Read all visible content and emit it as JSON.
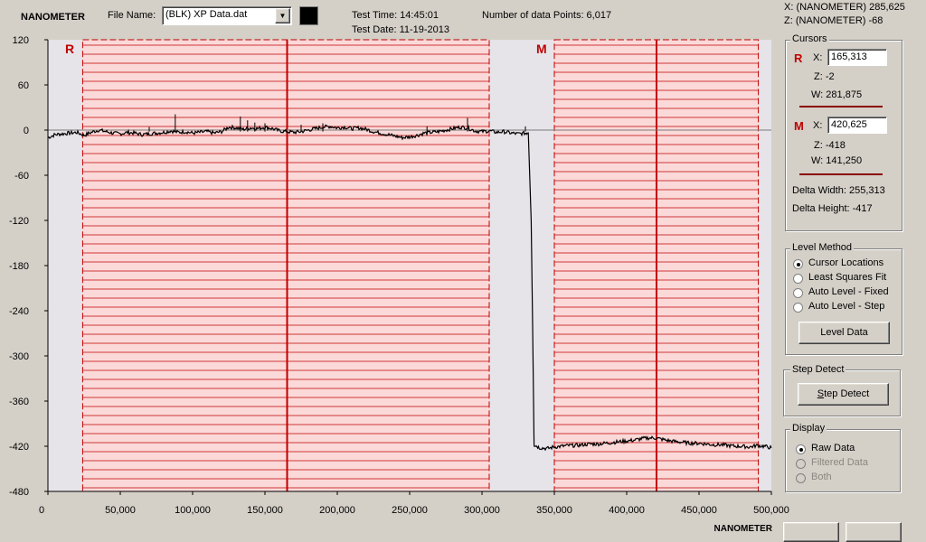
{
  "header": {
    "unit_label": "NANOMETER",
    "file_name_label": "File Name:",
    "file_name_value": "(BLK) XP Data.dat",
    "test_time": "Test Time: 14:45:01",
    "test_date": "Test Date: 11-19-2013",
    "data_points": "Number of data Points: 6,017",
    "cursor_x_readout": "X: (NANOMETER)  285,625",
    "cursor_z_readout": "Z: (NANOMETER)  -68"
  },
  "cursors": {
    "title": "Cursors",
    "r": {
      "letter": "R",
      "x_label": "X:",
      "x_value": "165,313",
      "z": "Z:  -2",
      "w": "W:  281,875"
    },
    "m": {
      "letter": "M",
      "x_label": "X:",
      "x_value": "420,625",
      "z": "Z:  -418",
      "w": "W:  141,250"
    },
    "delta_width": "Delta Width:  255,313",
    "delta_height": "Delta Height:  -417"
  },
  "level_method": {
    "title": "Level Method",
    "options": [
      "Cursor Locations",
      "Least Squares Fit",
      "Auto Level - Fixed",
      "Auto Level - Step"
    ],
    "selected_index": 0,
    "button": "Level Data"
  },
  "step_detect": {
    "title": "Step Detect",
    "button_rest": "tep Detect",
    "button_underline": "S"
  },
  "display": {
    "title": "Display",
    "options": [
      "Raw Data",
      "Filtered Data",
      "Both"
    ],
    "selected_index": 0,
    "enabled": [
      true,
      false,
      false
    ]
  },
  "chart_data": {
    "type": "line",
    "xlabel": "NANOMETER",
    "xlim": [
      0,
      500000
    ],
    "ylim": [
      -480,
      120
    ],
    "x_ticks": [
      0,
      50000,
      100000,
      150000,
      200000,
      250000,
      300000,
      350000,
      400000,
      450000,
      500000
    ],
    "x_tick_labels": [
      "0",
      "50,000",
      "100,000",
      "150,000",
      "200,000",
      "250,000",
      "300,000",
      "350,000",
      "400,000",
      "450,000",
      "500,000"
    ],
    "y_ticks": [
      120,
      60,
      0,
      -60,
      -120,
      -180,
      -240,
      -300,
      -360,
      -420,
      -480
    ],
    "y_tick_labels": [
      "120",
      "60",
      "0",
      "-60",
      "-120",
      "-180",
      "-240",
      "-300",
      "-360",
      "-420",
      "-480"
    ],
    "cursor_regions": [
      {
        "label": "R",
        "x_start": 24000,
        "x_end": 305000,
        "cursor_x": 165313,
        "color": "#c00000"
      },
      {
        "label": "M",
        "x_start": 350000,
        "x_end": 491000,
        "cursor_x": 420625,
        "color": "#c00000"
      }
    ],
    "series": [
      {
        "name": "Raw Data",
        "color": "#000000",
        "points": [
          [
            0,
            -10
          ],
          [
            5000,
            -6
          ],
          [
            10000,
            -5
          ],
          [
            15000,
            -4
          ],
          [
            20000,
            -3
          ],
          [
            25000,
            -7
          ],
          [
            30000,
            -3
          ],
          [
            35000,
            0
          ],
          [
            40000,
            -2
          ],
          [
            45000,
            -4
          ],
          [
            50000,
            -5
          ],
          [
            55000,
            -3
          ],
          [
            60000,
            -4
          ],
          [
            65000,
            -6
          ],
          [
            70000,
            -5
          ],
          [
            75000,
            -4
          ],
          [
            80000,
            -3
          ],
          [
            85000,
            -1
          ],
          [
            90000,
            -3
          ],
          [
            95000,
            -2
          ],
          [
            100000,
            -4
          ],
          [
            105000,
            -3
          ],
          [
            110000,
            -2
          ],
          [
            115000,
            -4
          ],
          [
            120000,
            -2
          ],
          [
            125000,
            4
          ],
          [
            130000,
            3
          ],
          [
            135000,
            1
          ],
          [
            140000,
            3
          ],
          [
            145000,
            2
          ],
          [
            150000,
            4
          ],
          [
            155000,
            2
          ],
          [
            160000,
            -1
          ],
          [
            165000,
            -2
          ],
          [
            170000,
            -3
          ],
          [
            175000,
            -2
          ],
          [
            180000,
            0
          ],
          [
            185000,
            2
          ],
          [
            190000,
            4
          ],
          [
            195000,
            5
          ],
          [
            200000,
            3
          ],
          [
            205000,
            4
          ],
          [
            210000,
            2
          ],
          [
            215000,
            3
          ],
          [
            220000,
            1
          ],
          [
            225000,
            -2
          ],
          [
            230000,
            -4
          ],
          [
            235000,
            -6
          ],
          [
            240000,
            -8
          ],
          [
            245000,
            -10
          ],
          [
            250000,
            -9
          ],
          [
            255000,
            -7
          ],
          [
            260000,
            -4
          ],
          [
            265000,
            -3
          ],
          [
            270000,
            -2
          ],
          [
            275000,
            0
          ],
          [
            280000,
            2
          ],
          [
            285000,
            4
          ],
          [
            290000,
            3
          ],
          [
            295000,
            -1
          ],
          [
            300000,
            -2
          ],
          [
            305000,
            -1
          ],
          [
            310000,
            -3
          ],
          [
            315000,
            -2
          ],
          [
            320000,
            -4
          ],
          [
            325000,
            -5
          ],
          [
            330000,
            -4
          ],
          [
            332000,
            -3
          ],
          [
            334000,
            -120
          ],
          [
            335000,
            -260
          ],
          [
            336000,
            -418
          ],
          [
            340000,
            -422
          ],
          [
            345000,
            -423
          ],
          [
            350000,
            -421
          ],
          [
            355000,
            -420
          ],
          [
            360000,
            -419
          ],
          [
            365000,
            -419
          ],
          [
            370000,
            -418
          ],
          [
            375000,
            -417
          ],
          [
            380000,
            -417
          ],
          [
            385000,
            -416
          ],
          [
            390000,
            -415
          ],
          [
            395000,
            -414
          ],
          [
            400000,
            -413
          ],
          [
            405000,
            -412
          ],
          [
            410000,
            -410
          ],
          [
            415000,
            -409
          ],
          [
            420000,
            -409
          ],
          [
            425000,
            -411
          ],
          [
            430000,
            -413
          ],
          [
            435000,
            -414
          ],
          [
            440000,
            -415
          ],
          [
            445000,
            -416
          ],
          [
            450000,
            -416
          ],
          [
            455000,
            -417
          ],
          [
            460000,
            -418
          ],
          [
            465000,
            -418
          ],
          [
            470000,
            -419
          ],
          [
            475000,
            -420
          ],
          [
            480000,
            -420
          ],
          [
            485000,
            -421
          ],
          [
            490000,
            -419
          ],
          [
            495000,
            -420
          ],
          [
            500000,
            -422
          ]
        ]
      }
    ],
    "spikes": [
      [
        88000,
        21
      ],
      [
        133000,
        18
      ],
      [
        138000,
        13
      ],
      [
        143000,
        10
      ],
      [
        175000,
        7
      ],
      [
        190000,
        9
      ],
      [
        262000,
        5
      ],
      [
        290000,
        16
      ],
      [
        330000,
        5
      ],
      [
        70000,
        4
      ],
      [
        150000,
        9
      ]
    ]
  }
}
